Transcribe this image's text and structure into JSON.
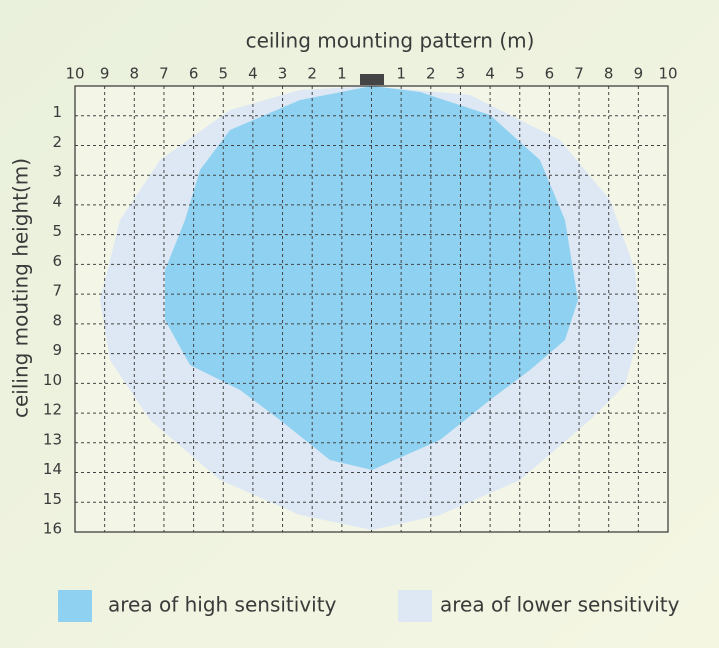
{
  "title": "ceiling mounting pattern (m)",
  "y_axis_label": "ceiling mouting height(m)",
  "x_labels": [
    "10",
    "9",
    "8",
    "7",
    "6",
    "5",
    "4",
    "3",
    "2",
    "1",
    "1",
    "2",
    "3",
    "4",
    "5",
    "6",
    "7",
    "8",
    "9",
    "10"
  ],
  "y_labels": [
    "1",
    "2",
    "3",
    "4",
    "5",
    "6",
    "7",
    "8",
    "9",
    "10",
    "12",
    "13",
    "14",
    "15",
    "16"
  ],
  "legend": [
    "area of high sensitivity",
    "area of lower sensitivity"
  ]
}
